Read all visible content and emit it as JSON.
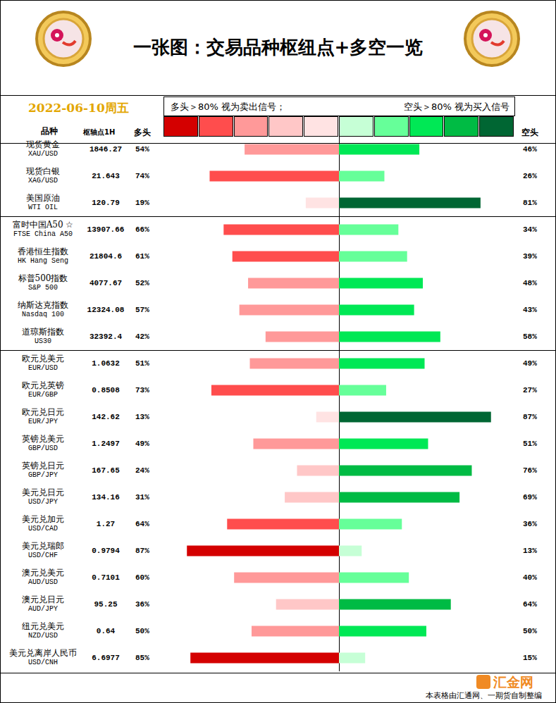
{
  "chart_data": {
    "type": "bar",
    "orientation": "horizontal",
    "title": "一张图：交易品种枢纽点+多空一览",
    "date": "2022-06-10周五",
    "notes": [
      "多头＞80% 视为卖出信号；",
      "空头＞80% 视为买入信号"
    ],
    "headers": {
      "name": "品种",
      "pivot": "枢轴点1H"
    },
    "footer": "本表格由汇通网、一期货自制整编",
    "watermark": "汇金网",
    "color_scale": [
      "#d40000",
      "#ff4d4d",
      "#ff9999",
      "#ffc7c7",
      "#ffe3e3",
      "#c6ffd6",
      "#66ff99",
      "#00e855",
      "#00bb44",
      "#006633"
    ],
    "categories": [
      "现货黄金",
      "现货白银",
      "美国原油",
      "富时中国A50 ☆",
      "香港恒生指数",
      "标普500指数",
      "纳斯达克指数",
      "道琼斯指数",
      "欧元兑美元",
      "欧元兑英镑",
      "欧元兑日元",
      "英镑兑美元",
      "英镑兑日元",
      "美元兑日元",
      "美元兑加元",
      "美元兑瑞郎",
      "澳元兑美元",
      "澳元兑日元",
      "纽元兑美元",
      "美元兑离岸人民币"
    ],
    "codes": [
      "XAU/USD",
      "XAG/USD",
      "WTI OIL",
      "FTSE China A50",
      "HK Hang Seng",
      "S&P 500",
      "Nasdaq 100",
      "US30",
      "EUR/USD",
      "EUR/GBP",
      "EUR/JPY",
      "GBP/USD",
      "GBP/JPY",
      "USD/JPY",
      "USD/CAD",
      "USD/CHF",
      "AUD/USD",
      "AUD/JPY",
      "NZD/USD",
      "USD/CNH"
    ],
    "pivots": [
      1846.27,
      21.643,
      120.79,
      13907.66,
      21804.6,
      4077.67,
      12324.08,
      32392.4,
      1.0632,
      0.8508,
      142.62,
      1.2497,
      167.65,
      134.16,
      1.27,
      0.9794,
      0.7101,
      95.25,
      0.64,
      6.6977
    ],
    "xlim": [
      0,
      100
    ],
    "tick_labels": false,
    "data_labels": true,
    "series": [
      {
        "name": "多头",
        "values": [
          54,
          74,
          19,
          66,
          61,
          52,
          57,
          42,
          51,
          73,
          13,
          49,
          24,
          31,
          64,
          87,
          60,
          36,
          50,
          85
        ],
        "value_labels": [
          "54%",
          "74%",
          "19%",
          "66%",
          "61%",
          "52%",
          "57%",
          "42%",
          "51%",
          "73%",
          "13%",
          "49%",
          "24%",
          "31%",
          "64%",
          "87%",
          "60%",
          "36%",
          "50%",
          "85%"
        ],
        "colors": [
          "#ff9999",
          "#ff4d4d",
          "#ffe3e3",
          "#ff4d4d",
          "#ff4d4d",
          "#ff9999",
          "#ff9999",
          "#ff9999",
          "#ff9999",
          "#ff4d4d",
          "#ffe3e3",
          "#ff9999",
          "#ffc7c7",
          "#ffc7c7",
          "#ff4d4d",
          "#d40000",
          "#ff9999",
          "#ffc7c7",
          "#ff9999",
          "#d40000"
        ]
      },
      {
        "name": "空头",
        "values": [
          46,
          26,
          81,
          34,
          39,
          48,
          43,
          58,
          49,
          27,
          87,
          51,
          76,
          69,
          36,
          13,
          40,
          64,
          50,
          15
        ],
        "value_labels": [
          "46%",
          "26%",
          "81%",
          "34%",
          "39%",
          "48%",
          "43%",
          "58%",
          "49%",
          "27%",
          "87%",
          "51%",
          "76%",
          "69%",
          "36%",
          "13%",
          "40%",
          "64%",
          "50%",
          "15%"
        ],
        "colors": [
          "#00e855",
          "#66ff99",
          "#006633",
          "#66ff99",
          "#66ff99",
          "#00e855",
          "#00e855",
          "#00e855",
          "#00e855",
          "#66ff99",
          "#006633",
          "#00e855",
          "#00bb44",
          "#00bb44",
          "#66ff99",
          "#c6ffd6",
          "#66ff99",
          "#00bb44",
          "#00e855",
          "#c6ffd6"
        ]
      }
    ]
  }
}
